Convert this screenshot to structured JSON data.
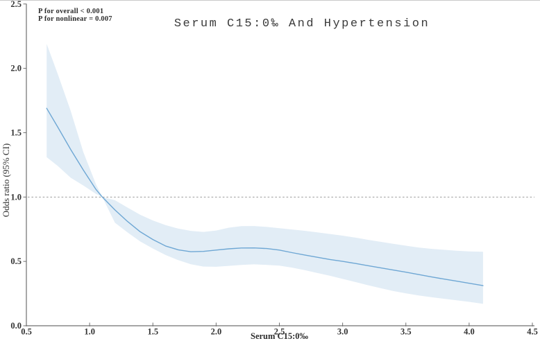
{
  "figure": {
    "title": "Serum C15:0‰ And Hypertension",
    "p_overall": "P for overall < 0.001",
    "p_nonlinear": "P for nonlinear = 0.007",
    "x_axis_label": "Serum C15:0‰",
    "y_axis_label": "Odds ratio (95% CI)"
  },
  "chart_data": {
    "type": "line",
    "subtype": "restricted-cubic-spline-with-confidence-band",
    "title": "Serum C15:0‰ And Hypertension",
    "xlabel": "Serum C15:0‰",
    "ylabel": "Odds ratio (95% CI)",
    "xlim": [
      0.5,
      4.5
    ],
    "ylim": [
      0.0,
      2.5
    ],
    "x_tick_labels": [
      "0.5",
      "1.0",
      "1.5",
      "2.0",
      "2.5",
      "3.0",
      "3.5",
      "4.0",
      "4.5"
    ],
    "x_tick_values": [
      0.5,
      1.0,
      1.5,
      2.0,
      2.5,
      3.0,
      3.5,
      4.0,
      4.5
    ],
    "y_tick_labels": [
      "0.0",
      "0.5",
      "1.0",
      "1.5",
      "2.0",
      "2.5"
    ],
    "y_tick_values": [
      0.0,
      0.5,
      1.0,
      1.5,
      2.0,
      2.5
    ],
    "grid": false,
    "legend": "none",
    "reference_line": {
      "y": 1.0,
      "style": "dashed"
    },
    "annotations": [
      "P for overall < 0.001",
      "P for nonlinear = 0.007"
    ],
    "x": [
      0.66,
      0.75,
      0.85,
      0.95,
      1.05,
      1.1,
      1.2,
      1.3,
      1.4,
      1.5,
      1.6,
      1.7,
      1.8,
      1.9,
      2.0,
      2.1,
      2.2,
      2.3,
      2.4,
      2.5,
      2.6,
      2.7,
      2.8,
      2.9,
      3.0,
      3.1,
      3.2,
      3.3,
      3.4,
      3.5,
      3.6,
      3.7,
      3.8,
      3.9,
      4.0,
      4.11
    ],
    "series": [
      {
        "name": "Odds ratio estimate",
        "values": [
          1.69,
          1.54,
          1.37,
          1.21,
          1.06,
          1.0,
          0.9,
          0.81,
          0.73,
          0.67,
          0.62,
          0.59,
          0.575,
          0.578,
          0.588,
          0.598,
          0.604,
          0.605,
          0.6,
          0.588,
          0.568,
          0.55,
          0.532,
          0.515,
          0.5,
          0.484,
          0.467,
          0.45,
          0.433,
          0.416,
          0.398,
          0.38,
          0.363,
          0.347,
          0.33,
          0.312
        ]
      },
      {
        "name": "95% CI lower",
        "values": [
          1.31,
          1.24,
          1.15,
          1.09,
          1.025,
          1.0,
          0.8,
          0.725,
          0.655,
          0.6,
          0.55,
          0.51,
          0.478,
          0.46,
          0.458,
          0.465,
          0.473,
          0.477,
          0.473,
          0.467,
          0.452,
          0.432,
          0.41,
          0.388,
          0.364,
          0.34,
          0.315,
          0.292,
          0.27,
          0.252,
          0.236,
          0.222,
          0.21,
          0.198,
          0.186,
          0.17
        ]
      },
      {
        "name": "95% CI upper",
        "values": [
          2.19,
          1.95,
          1.67,
          1.35,
          1.1,
          1.0,
          0.975,
          0.918,
          0.862,
          0.818,
          0.782,
          0.755,
          0.737,
          0.729,
          0.74,
          0.762,
          0.774,
          0.775,
          0.768,
          0.758,
          0.748,
          0.738,
          0.726,
          0.713,
          0.7,
          0.685,
          0.668,
          0.652,
          0.637,
          0.622,
          0.608,
          0.598,
          0.59,
          0.583,
          0.578,
          0.575
        ]
      }
    ],
    "colors": {
      "curve": "#6ea7d4",
      "ci_band": "#e2edf6",
      "reference_line": "#8c8c8c",
      "axis": "#6f6f6f",
      "text": "#333333"
    }
  }
}
